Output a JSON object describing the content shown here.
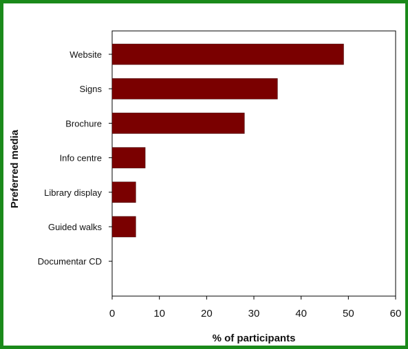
{
  "colors": {
    "bar": "#7a0000",
    "border": "#1a8a1a",
    "axis": "#000000"
  },
  "chart_data": {
    "type": "bar",
    "orientation": "horizontal",
    "categories": [
      "Website",
      "Signs",
      "Brochure",
      "Info centre",
      "Library display",
      "Guided walks",
      "Documentar CD"
    ],
    "values": [
      49,
      35,
      28,
      7,
      5,
      5,
      0
    ],
    "xlabel": "% of participants",
    "ylabel": "Preferred media",
    "xlim": [
      0,
      60
    ],
    "xticks": [
      0,
      10,
      20,
      30,
      40,
      50,
      60
    ],
    "grid": false
  }
}
